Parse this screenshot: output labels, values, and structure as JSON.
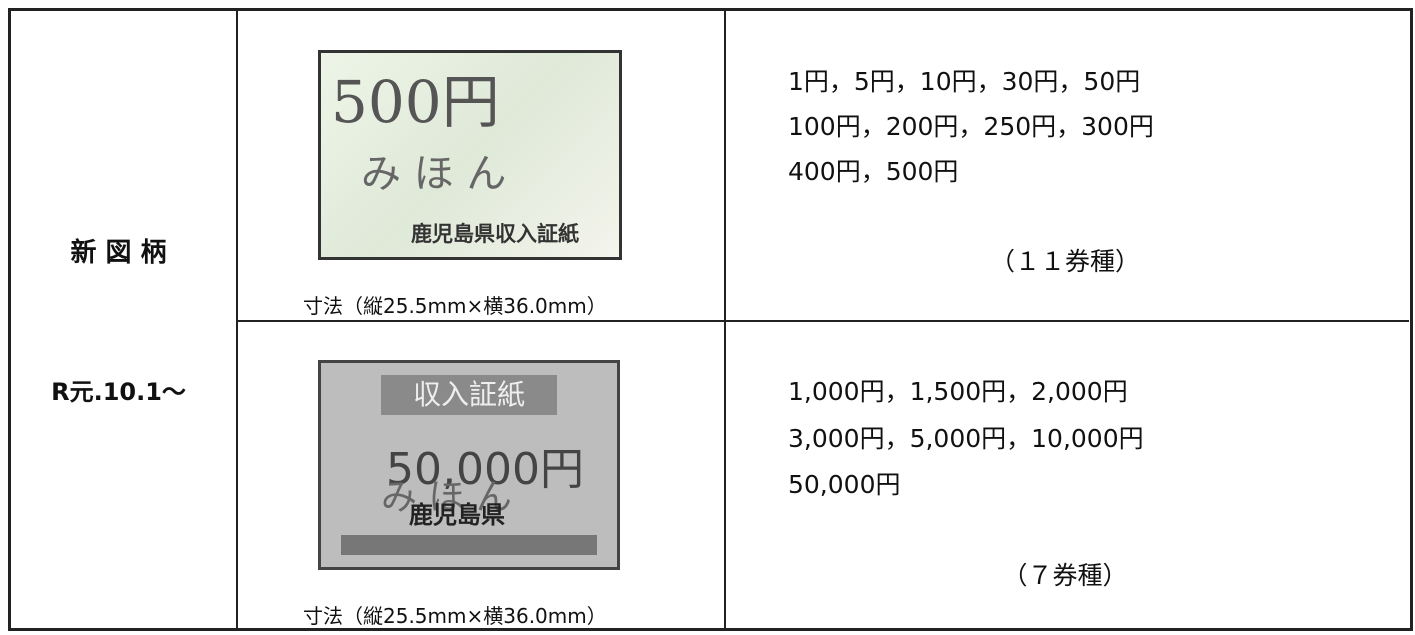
{
  "table": {
    "label": {
      "title": "新 図 柄",
      "date": "R元.10.1～"
    },
    "rows": [
      {
        "stamp": {
          "value": "500円",
          "sample": "み ほ ん",
          "issuer": "鹿児島県収入証紙"
        },
        "size": "寸法（縦25.5mm×横36.0mm）",
        "denominations": [
          "1円，5円，10円，30円，50円",
          "100円，200円，250円，300円",
          "400円，500円"
        ],
        "count": "（１１券種）"
      },
      {
        "stamp": {
          "header": "収入証紙",
          "value": "50,000円",
          "sample": "み ほ ん",
          "issuer": "鹿児島県"
        },
        "size": "寸法（縦25.5mm×横36.0mm）",
        "denominations": [
          "1,000円，1,500円，2,000円",
          "3,000円，5,000円，10,000円",
          "50,000円"
        ],
        "count": "（７券種）"
      }
    ]
  }
}
